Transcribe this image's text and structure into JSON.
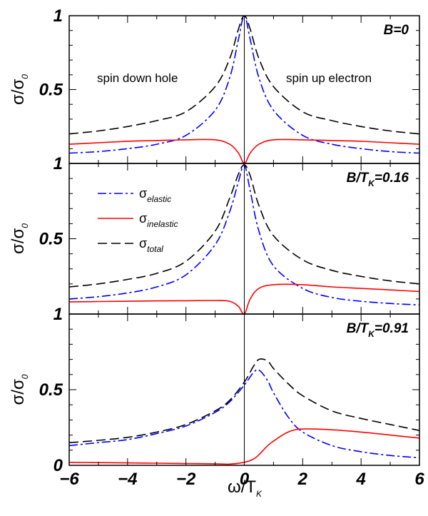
{
  "chart_data": [
    {
      "type": "line",
      "title": "B=0",
      "ylabel": "σ/σ0",
      "xlabel": "",
      "xlim": [
        -6,
        6
      ],
      "ylim": [
        0,
        1
      ],
      "yticks": [
        "1",
        "0.5"
      ],
      "annotations": [
        "spin down hole",
        "spin up electron"
      ],
      "x": [
        -6,
        -5,
        -4,
        -3,
        -2,
        -1,
        -0.5,
        -0.2,
        0,
        0.2,
        0.5,
        1,
        2,
        3,
        4,
        5,
        6
      ],
      "series": [
        {
          "name": "σelastic",
          "color": "#0000ff",
          "dash": "dashdot",
          "values": [
            0.07,
            0.08,
            0.1,
            0.13,
            0.19,
            0.36,
            0.58,
            0.84,
            1.0,
            0.84,
            0.58,
            0.36,
            0.19,
            0.13,
            0.1,
            0.08,
            0.07
          ]
        },
        {
          "name": "σinelastic",
          "color": "#ff0000",
          "dash": "solid",
          "values": [
            0.13,
            0.14,
            0.15,
            0.155,
            0.16,
            0.16,
            0.13,
            0.07,
            0.0,
            0.07,
            0.13,
            0.16,
            0.16,
            0.155,
            0.15,
            0.14,
            0.13
          ]
        },
        {
          "name": "σtotal",
          "color": "#000000",
          "dash": "dash",
          "values": [
            0.2,
            0.22,
            0.25,
            0.29,
            0.35,
            0.52,
            0.71,
            0.91,
            1.0,
            0.91,
            0.71,
            0.52,
            0.35,
            0.29,
            0.25,
            0.22,
            0.2
          ]
        }
      ]
    },
    {
      "type": "line",
      "title": "B/TK=0.16",
      "ylabel": "σ/σ0",
      "xlabel": "",
      "xlim": [
        -6,
        6
      ],
      "ylim": [
        0,
        1
      ],
      "yticks": [
        "1",
        "0.5"
      ],
      "x": [
        -6,
        -5,
        -4,
        -3,
        -2,
        -1,
        -0.5,
        -0.2,
        0,
        0.2,
        0.5,
        1,
        2,
        3,
        4,
        5,
        6
      ],
      "series": [
        {
          "name": "σelastic",
          "color": "#0000ff",
          "dash": "dashdot",
          "values": [
            0.1,
            0.115,
            0.14,
            0.18,
            0.26,
            0.46,
            0.68,
            0.88,
            0.99,
            0.82,
            0.55,
            0.32,
            0.17,
            0.11,
            0.085,
            0.07,
            0.06
          ]
        },
        {
          "name": "σinelastic",
          "color": "#ff0000",
          "dash": "solid",
          "values": [
            0.08,
            0.083,
            0.085,
            0.087,
            0.088,
            0.09,
            0.085,
            0.05,
            0.0,
            0.1,
            0.17,
            0.195,
            0.195,
            0.18,
            0.17,
            0.16,
            0.15
          ]
        },
        {
          "name": "σtotal",
          "color": "#000000",
          "dash": "dash",
          "values": [
            0.18,
            0.2,
            0.23,
            0.27,
            0.35,
            0.55,
            0.77,
            0.93,
            0.99,
            0.92,
            0.72,
            0.52,
            0.36,
            0.29,
            0.25,
            0.22,
            0.2
          ]
        }
      ]
    },
    {
      "type": "line",
      "title": "B/TK=0.91",
      "ylabel": "σ/σ0",
      "xlabel": "ω/TK",
      "xlim": [
        -6,
        6
      ],
      "ylim": [
        0,
        1
      ],
      "xticks": [
        "−6",
        "−4",
        "−2",
        "0",
        "2",
        "4",
        "6"
      ],
      "yticks": [
        "1",
        "0.5",
        "0"
      ],
      "x": [
        -6,
        -5,
        -4,
        -3,
        -2,
        -1,
        -0.5,
        0,
        0.3,
        0.5,
        0.8,
        1,
        1.5,
        2,
        3,
        4,
        5,
        6
      ],
      "series": [
        {
          "name": "σelastic",
          "color": "#0000ff",
          "dash": "dashdot",
          "values": [
            0.13,
            0.15,
            0.17,
            0.21,
            0.26,
            0.35,
            0.42,
            0.53,
            0.61,
            0.63,
            0.56,
            0.48,
            0.32,
            0.22,
            0.13,
            0.09,
            0.065,
            0.05
          ]
        },
        {
          "name": "σinelastic",
          "color": "#ff0000",
          "dash": "solid",
          "values": [
            0.02,
            0.018,
            0.016,
            0.014,
            0.012,
            0.01,
            0.008,
            0.02,
            0.04,
            0.07,
            0.13,
            0.16,
            0.22,
            0.24,
            0.235,
            0.22,
            0.2,
            0.18
          ]
        },
        {
          "name": "σtotal",
          "color": "#000000",
          "dash": "dash",
          "values": [
            0.15,
            0.165,
            0.185,
            0.22,
            0.27,
            0.36,
            0.43,
            0.55,
            0.65,
            0.7,
            0.69,
            0.64,
            0.54,
            0.46,
            0.36,
            0.31,
            0.27,
            0.23
          ]
        }
      ]
    }
  ],
  "legend": {
    "panel": 1,
    "placement": "top-left",
    "items": [
      {
        "base": "σ",
        "sub": "elastic",
        "color": "#0000ff",
        "dash": "dashdot"
      },
      {
        "base": "σ",
        "sub": "inelastic",
        "color": "#ff0000",
        "dash": "solid"
      },
      {
        "base": "σ",
        "sub": "total",
        "color": "#000000",
        "dash": "dash"
      }
    ]
  }
}
